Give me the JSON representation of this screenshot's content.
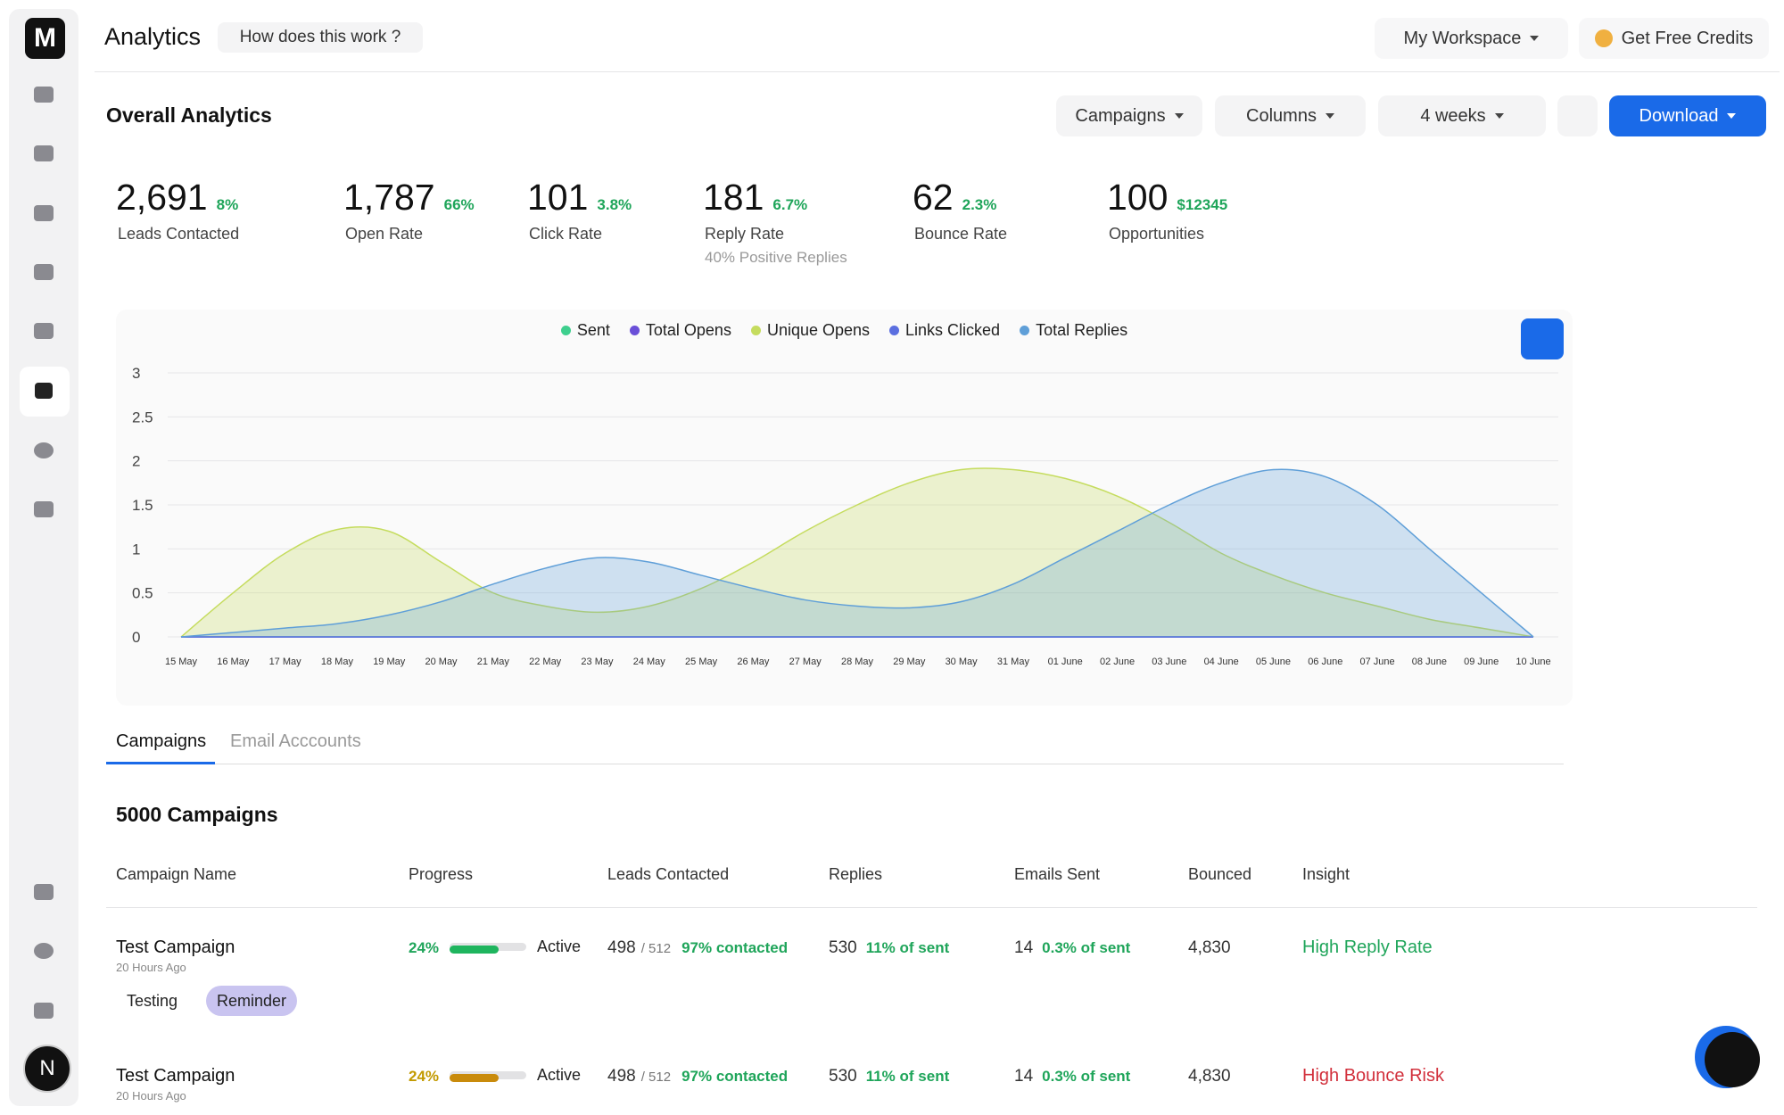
{
  "sidebar": {
    "logo": "M",
    "avatar": "N"
  },
  "header": {
    "title": "Analytics",
    "help": "How does this work ?",
    "workspace": "My Workspace",
    "credits": "Get Free Credits"
  },
  "section_title": "Overall Analytics",
  "toolbar": {
    "filters": [
      "Campaigns",
      "Columns",
      "4 weeks"
    ],
    "download": "Download"
  },
  "stats": [
    {
      "value": "2,691",
      "change": "8%",
      "label": "Leads Contacted"
    },
    {
      "value": "1,787",
      "change": "66%",
      "label": "Open Rate"
    },
    {
      "value": "101",
      "change": "3.8%",
      "label": "Click Rate"
    },
    {
      "value": "181",
      "change": "6.7%",
      "label": "Reply Rate",
      "sub": "40% Positive Replies"
    },
    {
      "value": "62",
      "change": "2.3%",
      "label": "Bounce Rate"
    },
    {
      "value": "100",
      "change": "$12345",
      "label": "Opportunities"
    }
  ],
  "chart_data": {
    "type": "area",
    "categories": [
      "15 May",
      "16 May",
      "17 May",
      "18 May",
      "19 May",
      "20 May",
      "21 May",
      "22 May",
      "23 May",
      "24 May",
      "25 May",
      "26 May",
      "27 May",
      "28 May",
      "29 May",
      "30 May",
      "31 May",
      "01 June",
      "02 June",
      "03 June",
      "04 June",
      "05 June",
      "06 June",
      "07 June",
      "08 June",
      "09 June",
      "10 June"
    ],
    "series": [
      {
        "name": "Sent",
        "color": "#3ecf8e",
        "values": [
          0,
          0,
          0,
          0,
          0,
          0,
          0,
          0,
          0,
          0,
          0,
          0,
          0,
          0,
          0,
          0,
          0,
          0,
          0,
          0,
          0,
          0,
          0,
          0,
          0,
          0,
          0
        ]
      },
      {
        "name": "Total Opens",
        "color": "#6a4fd8",
        "values": [
          0,
          0,
          0,
          0,
          0,
          0,
          0,
          0,
          0,
          0,
          0,
          0,
          0,
          0,
          0,
          0,
          0,
          0,
          0,
          0,
          0,
          0,
          0,
          0,
          0,
          0,
          0
        ]
      },
      {
        "name": "Unique Opens",
        "color": "#c5dc5e",
        "values": [
          0,
          0.5,
          0.95,
          1.22,
          1.2,
          0.85,
          0.5,
          0.35,
          0.28,
          0.35,
          0.55,
          0.85,
          1.2,
          1.5,
          1.75,
          1.9,
          1.9,
          1.8,
          1.6,
          1.3,
          0.95,
          0.7,
          0.5,
          0.35,
          0.2,
          0.1,
          0
        ]
      },
      {
        "name": "Links Clicked",
        "color": "#5b6fe0",
        "values": [
          0,
          0,
          0,
          0,
          0,
          0,
          0,
          0,
          0,
          0,
          0,
          0,
          0,
          0,
          0,
          0,
          0,
          0,
          0,
          0,
          0,
          0,
          0,
          0,
          0,
          0,
          0
        ]
      },
      {
        "name": "Total Replies",
        "color": "#5f9fd8",
        "values": [
          0,
          0.05,
          0.1,
          0.15,
          0.25,
          0.4,
          0.6,
          0.78,
          0.9,
          0.85,
          0.7,
          0.55,
          0.42,
          0.35,
          0.33,
          0.4,
          0.6,
          0.9,
          1.2,
          1.5,
          1.75,
          1.9,
          1.82,
          1.5,
          1.0,
          0.5,
          0
        ]
      }
    ],
    "ylim": [
      0,
      3
    ],
    "yticks": [
      0,
      0.5,
      1,
      1.5,
      2,
      2.5,
      3
    ],
    "grid": true,
    "legend": "top"
  },
  "tabs": [
    "Campaigns",
    "Email Acccounts"
  ],
  "table_title": "5000 Campaigns",
  "table": {
    "columns": [
      "Campaign Name",
      "Progress",
      "Leads Contacted",
      "Replies",
      "Emails Sent",
      "Bounced",
      "Insight"
    ],
    "rows": [
      {
        "name": "Test Campaign",
        "time": "20 Hours Ago",
        "tags": [
          "Testing",
          "Reminder"
        ],
        "progress": "24%",
        "status": "Active",
        "leads": "498",
        "leads_total": "/ 512",
        "contacted": "97% contacted",
        "replies": "530",
        "replies_pct": "11% of sent",
        "sent": "14",
        "sent_pct": "0.3% of sent",
        "bounced": "4,830",
        "insight": "High Reply Rate"
      },
      {
        "name": "Test Campaign",
        "time": "20 Hours Ago",
        "progress": "24%",
        "status": "Active",
        "leads": "498",
        "leads_total": "/ 512",
        "contacted": "97% contacted",
        "replies": "530",
        "replies_pct": "11% of sent",
        "sent": "14",
        "sent_pct": "0.3% of sent",
        "bounced": "4,830",
        "insight": "High Bounce Risk"
      }
    ]
  }
}
